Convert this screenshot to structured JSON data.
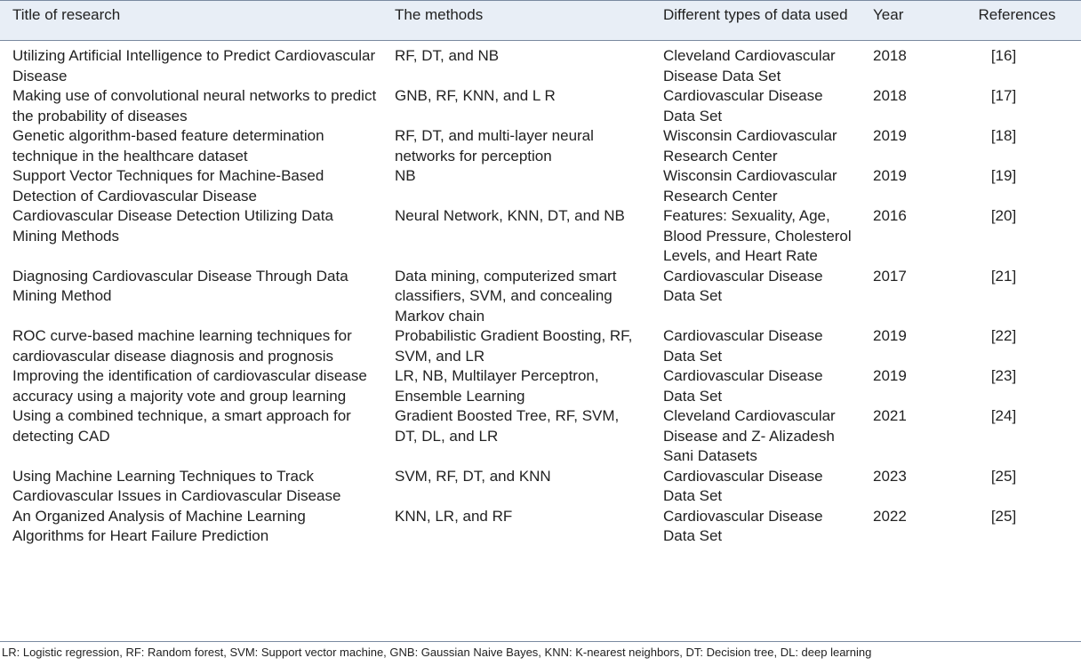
{
  "table": {
    "header": [
      "Title of research",
      "The methods",
      "Different types of data used",
      "Year",
      "References"
    ],
    "rows": [
      [
        "Utilizing Artificial Intelligence to Predict Cardiovascular Disease",
        "RF, DT, and NB",
        "Cleveland Cardiovascular Disease Data Set",
        2018,
        "[16]"
      ],
      [
        "Making use of convolutional neural networks to predict the probability of diseases",
        "GNB, RF, KNN, and L R",
        "Cardiovascular Disease Data Set",
        2018,
        "[17]"
      ],
      [
        "Genetic algorithm-based feature determination technique in the healthcare dataset",
        "RF, DT, and multi-layer neural networks for perception",
        "Wisconsin Cardiovascular Research Center",
        2019,
        "[18]"
      ],
      [
        "Support Vector Techniques for Machine-Based Detection of Cardiovascular Disease",
        "NB",
        "Wisconsin Cardiovascular Research Center",
        2019,
        "[19]"
      ],
      [
        "Cardiovascular Disease Detection Utilizing Data Mining Methods",
        "Neural Network, KNN, DT, and NB",
        "Features: Sexuality, Age, Blood Pressure, Cholesterol Levels, and Heart Rate",
        2016,
        "[20]"
      ],
      [
        "Diagnosing Cardiovascular Disease Through Data Mining Method",
        "Data mining, computerized smart classifiers, SVM, and concealing Markov chain",
        "Cardiovascular Disease Data Set",
        2017,
        "[21]"
      ],
      [
        "ROC curve-based machine learning techniques for cardiovascular disease diagnosis and prognosis",
        "Probabilistic Gradient Boosting, RF, SVM, and LR",
        "Cardiovascular Disease Data Set",
        2019,
        "[22]"
      ],
      [
        "Improving the identification of cardiovascular disease accuracy using a majority vote and group learning",
        "LR, NB, Multilayer Perceptron, Ensemble Learning",
        "Cardiovascular Disease Data Set",
        2019,
        "[23]"
      ],
      [
        "Using a combined technique, a smart approach for detecting CAD",
        "Gradient Boosted Tree, RF, SVM, DT, DL, and LR",
        "Cleveland Cardiovascular Disease and Z- Alizadesh Sani Datasets",
        2021,
        "[24]"
      ],
      [
        "Using Machine Learning Techniques to Track Cardiovascular Issues in Cardiovascular Disease",
        "SVM, RF, DT, and KNN",
        "Cardiovascular Disease Data Set",
        2023,
        "[25]"
      ],
      [
        "An Organized Analysis of Machine Learning Algorithms for Heart Failure Prediction",
        "KNN, LR, and RF",
        "Cardiovascular Disease Data Set",
        2022,
        "[25]"
      ]
    ],
    "footnote": "LR: Logistic regression, RF: Random forest, SVM: Support vector machine, GNB: Gaussian Naive Bayes, KNN: K-nearest neighbors, DT: Decision tree, DL: deep learning"
  }
}
